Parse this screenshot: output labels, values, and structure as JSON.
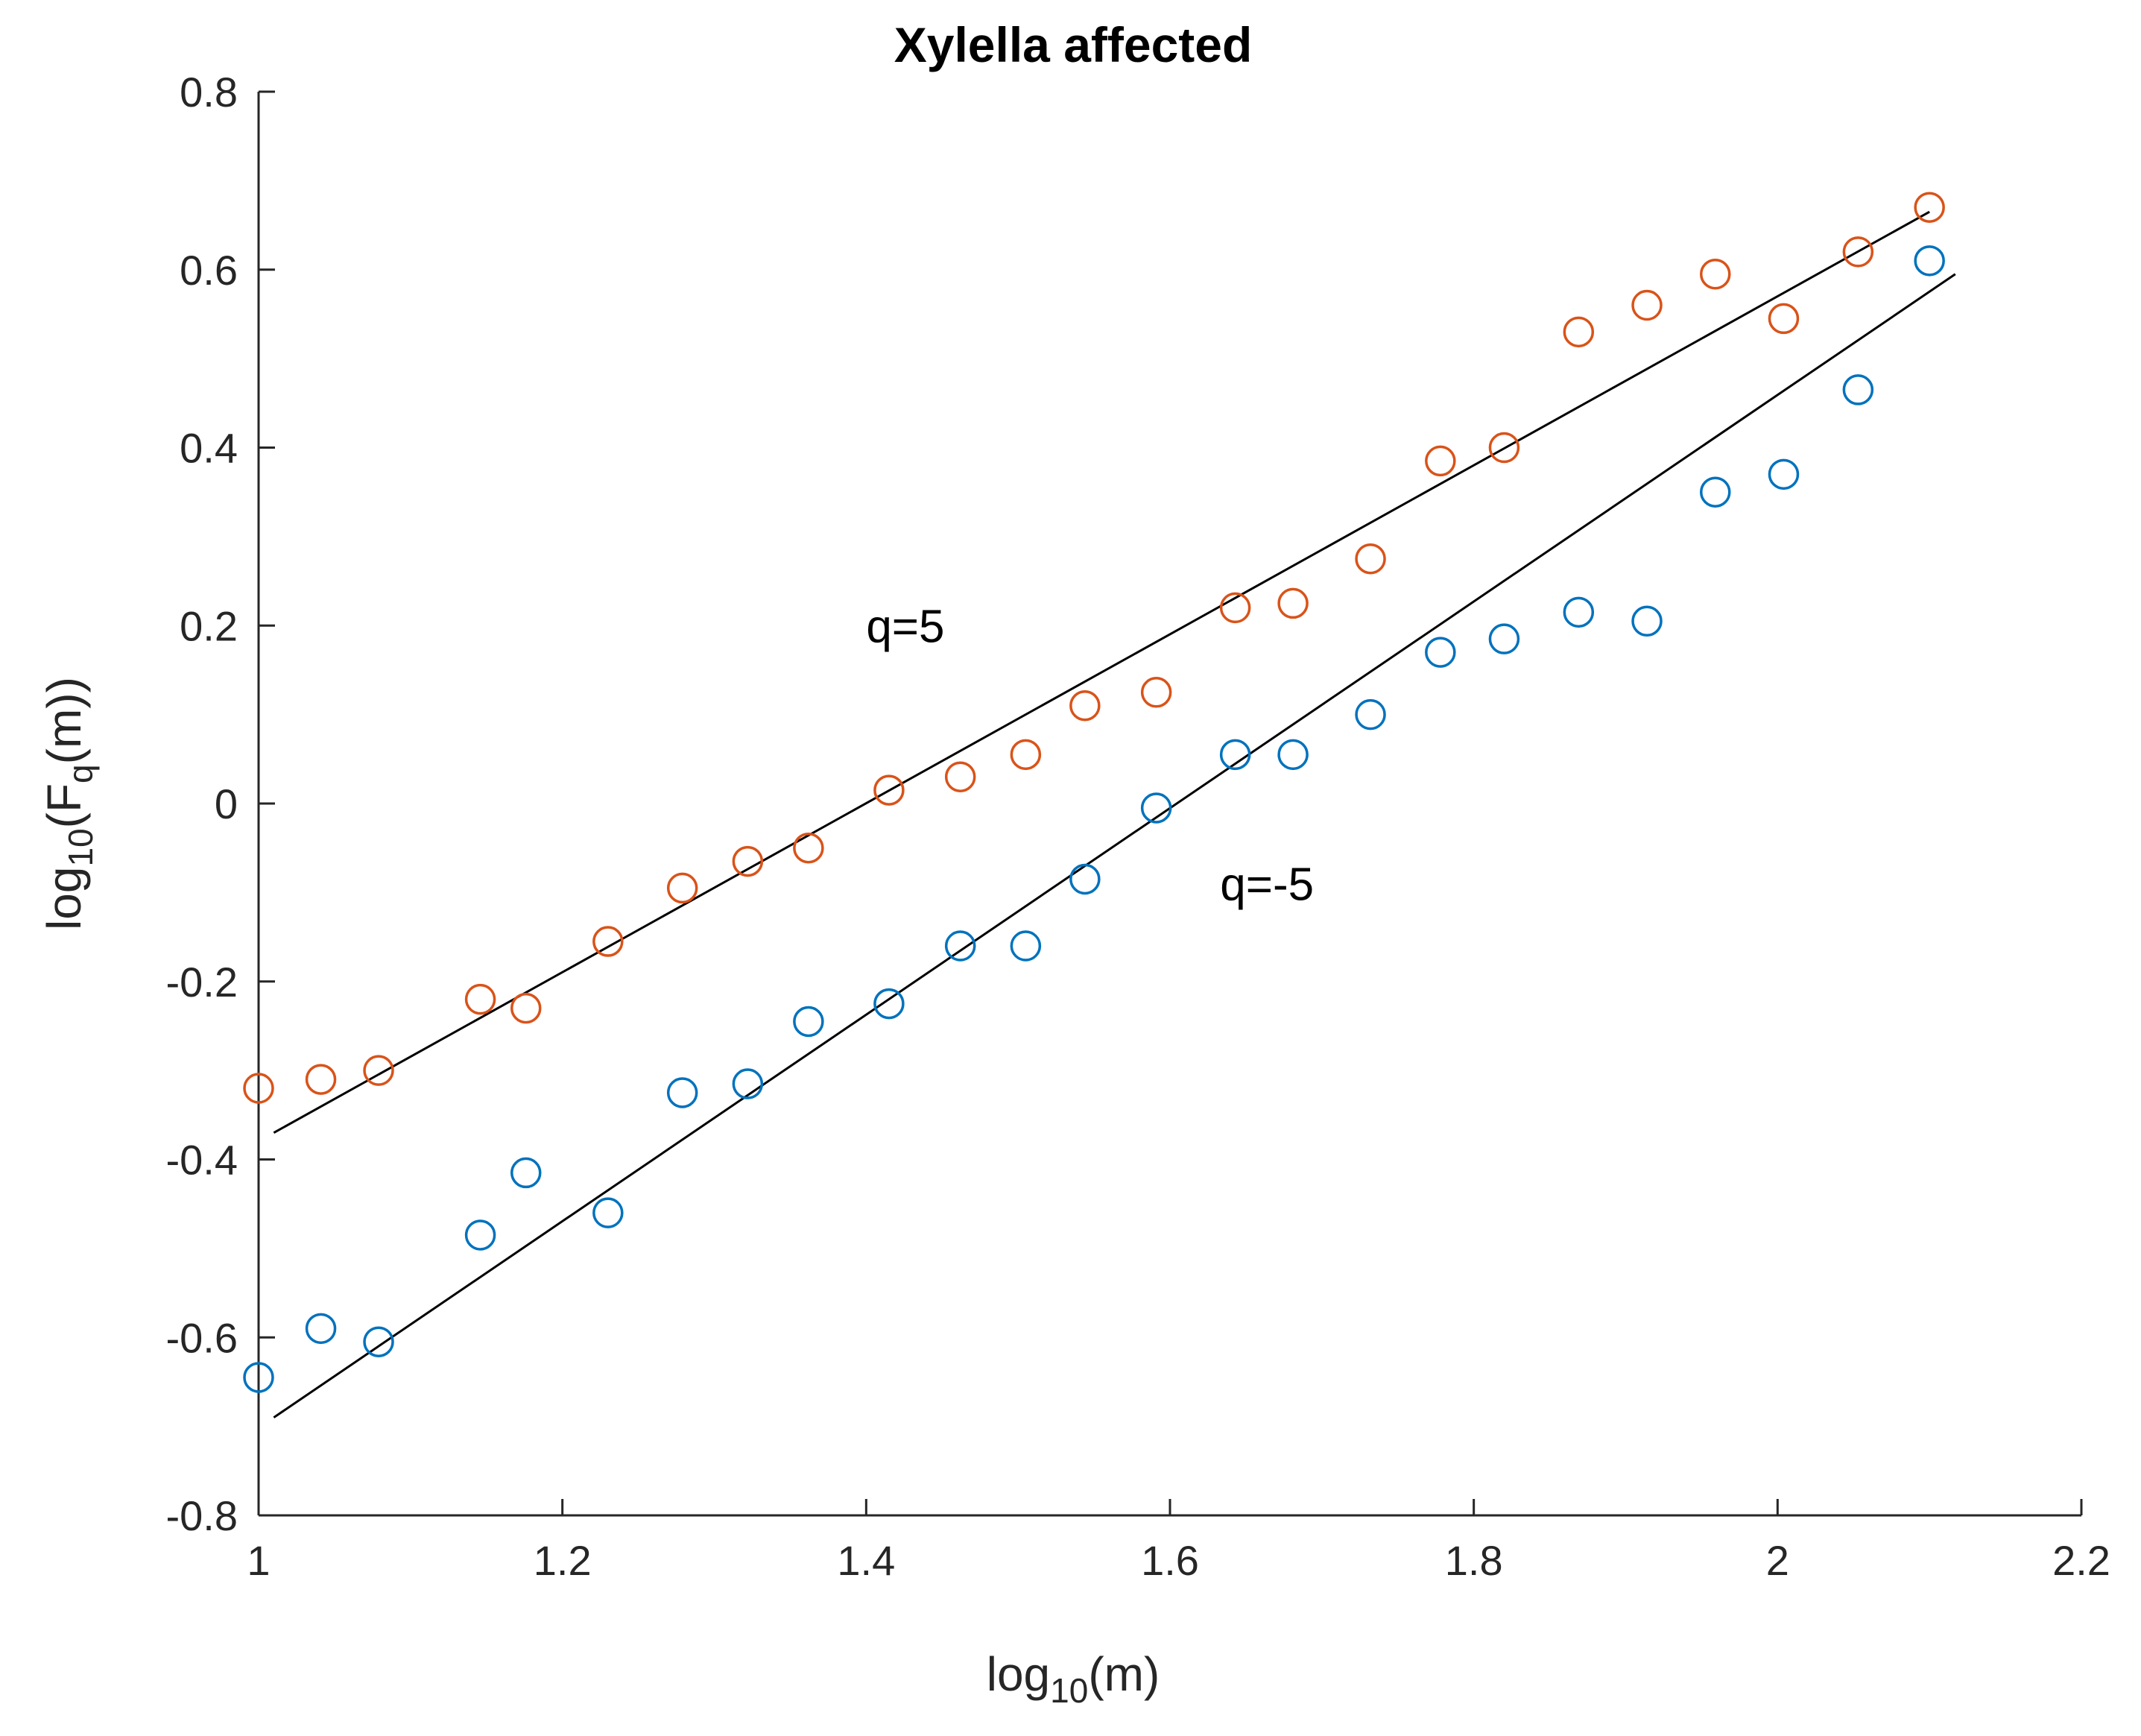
{
  "chart_data": {
    "type": "scatter",
    "title": "Xylella affected",
    "xlabel": {
      "base": "log",
      "sub": "10",
      "rest": "(m)"
    },
    "ylabel": {
      "base": "log",
      "sub1": "10",
      "mid": "(F",
      "sub2": "q",
      "rest": "(m))"
    },
    "xlim": [
      1,
      2.2
    ],
    "ylim": [
      -0.8,
      0.8
    ],
    "x_ticks": [
      1,
      1.2,
      1.4,
      1.6,
      1.8,
      2,
      2.2
    ],
    "x_tick_labels": [
      "1",
      "1.2",
      "1.4",
      "1.6",
      "1.8",
      "2",
      "2.2"
    ],
    "y_ticks": [
      -0.8,
      -0.6,
      -0.4,
      -0.2,
      0,
      0.2,
      0.4,
      0.6,
      0.8
    ],
    "y_tick_labels": [
      "-0.8",
      "-0.6",
      "-0.4",
      "-0.2",
      "0",
      "0.2",
      "0.4",
      "0.6",
      "0.8"
    ],
    "grid": false,
    "series": [
      {
        "name": "q=5",
        "color": "#D95319",
        "marker": "circle",
        "x": [
          1.0,
          1.041,
          1.079,
          1.146,
          1.176,
          1.23,
          1.279,
          1.322,
          1.362,
          1.415,
          1.462,
          1.505,
          1.544,
          1.591,
          1.643,
          1.681,
          1.732,
          1.778,
          1.82,
          1.869,
          1.914,
          1.959,
          2.004,
          2.053,
          2.1
        ],
        "y": [
          -0.32,
          -0.31,
          -0.3,
          -0.22,
          -0.23,
          -0.155,
          -0.095,
          -0.065,
          -0.05,
          0.015,
          0.03,
          0.055,
          0.11,
          0.125,
          0.22,
          0.225,
          0.275,
          0.385,
          0.4,
          0.53,
          0.56,
          0.595,
          0.545,
          0.62,
          0.67
        ]
      },
      {
        "name": "q=-5",
        "color": "#0072BD",
        "marker": "circle",
        "x": [
          1.0,
          1.041,
          1.079,
          1.146,
          1.176,
          1.23,
          1.279,
          1.322,
          1.362,
          1.415,
          1.462,
          1.505,
          1.544,
          1.591,
          1.643,
          1.681,
          1.732,
          1.778,
          1.82,
          1.869,
          1.914,
          1.959,
          2.004,
          2.053,
          2.1
        ],
        "y": [
          -0.645,
          -0.59,
          -0.605,
          -0.485,
          -0.415,
          -0.46,
          -0.325,
          -0.315,
          -0.245,
          -0.225,
          -0.16,
          -0.16,
          -0.085,
          -0.005,
          0.055,
          0.055,
          0.1,
          0.17,
          0.185,
          0.215,
          0.205,
          0.35,
          0.37,
          0.465,
          0.61
        ]
      }
    ],
    "fit_lines": [
      {
        "name": "fit-q5",
        "color": "#000000",
        "x": [
          1.01,
          2.1
        ],
        "y": [
          -0.37,
          0.665
        ]
      },
      {
        "name": "fit-q-5",
        "color": "#000000",
        "x": [
          1.01,
          2.117
        ],
        "y": [
          -0.69,
          0.595
        ]
      }
    ],
    "annotations": [
      {
        "text": "q=5",
        "x": 1.4,
        "y": 0.2
      },
      {
        "text": "q=-5",
        "x": 1.633,
        "y": -0.09
      }
    ]
  }
}
